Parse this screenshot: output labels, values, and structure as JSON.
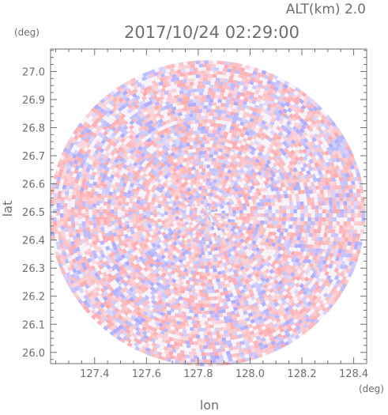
{
  "chart_data": {
    "type": "heatmap",
    "title": "2017/10/24 02:29:00",
    "subtitle": "ALT(km) 2.0",
    "xlabel": "lon",
    "ylabel": "lat",
    "x_unit": "(deg)",
    "y_unit": "(deg)",
    "xlim": [
      127.23,
      128.45
    ],
    "ylim": [
      25.96,
      27.08
    ],
    "x_ticks": [
      127.4,
      127.6,
      127.8,
      128.0,
      128.2,
      128.4
    ],
    "x_tick_labels": [
      "127.4",
      "127.6",
      "127.8",
      "128.0",
      "128.2",
      "128.4"
    ],
    "y_ticks": [
      26.0,
      26.1,
      26.2,
      26.3,
      26.4,
      26.5,
      26.6,
      26.7,
      26.8,
      26.9,
      27.0
    ],
    "y_tick_labels": [
      "26.0",
      "26.1",
      "26.2",
      "26.3",
      "26.4",
      "26.5",
      "26.6",
      "26.7",
      "26.8",
      "26.9",
      "27.0"
    ],
    "radar_center": {
      "lon": 127.835,
      "lat": 26.495
    },
    "radar_range_deg": {
      "lon": 0.61,
      "lat": 0.545
    },
    "colors": {
      "positive": "#ff8c8c",
      "negative": "#8c8cff",
      "axis": "#6e6e6e",
      "text": "#6e6e6e"
    },
    "grid": false
  }
}
